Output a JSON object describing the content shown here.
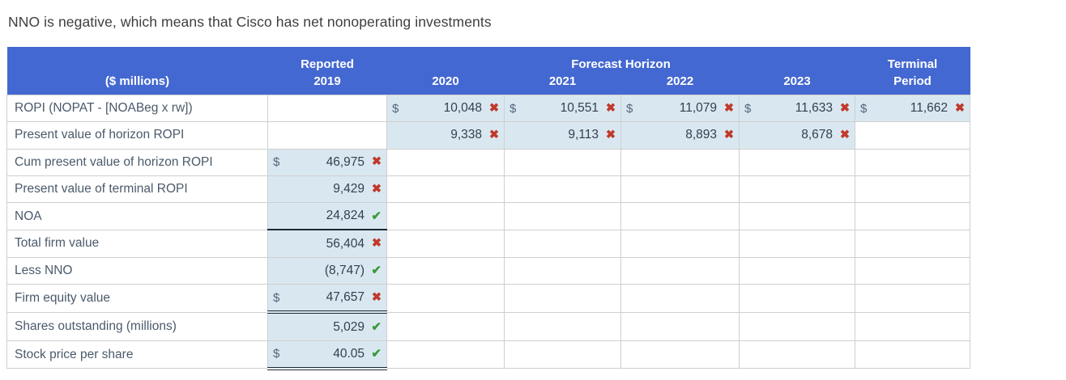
{
  "title": "NNO is negative, which means that Cisco has net nonoperating investments",
  "colors": {
    "header_bg": "#4468d1",
    "filled_bg": "#d9e8f0",
    "wrong": "#c0392b",
    "correct": "#3c993c",
    "label_text": "#4b5a6b",
    "value_text": "#333f4f",
    "title_text": "#3e3e3e",
    "border": "#cfcfcf",
    "dark_line": "#1f2a36"
  },
  "table": {
    "header": {
      "reported": "Reported",
      "forecast_horizon": "Forecast Horizon",
      "terminal": "Terminal",
      "millions": "($ millions)",
      "y2019": "2019",
      "y2020": "2020",
      "y2021": "2021",
      "y2022": "2022",
      "y2023": "2023",
      "period": "Period"
    },
    "marks": {
      "wrong": "✖",
      "correct": "✔"
    },
    "columns": [
      "y2019",
      "y2020",
      "y2021",
      "y2022",
      "y2023",
      "terminal"
    ],
    "rows": [
      {
        "label": "ROPI (NOPAT - [NOABeg x rw])",
        "cells": {
          "y2020": {
            "filled": true,
            "dollar": "$",
            "value": "10,048",
            "mark": "wrong"
          },
          "y2021": {
            "filled": true,
            "dollar": "$",
            "value": "10,551",
            "mark": "wrong"
          },
          "y2022": {
            "filled": true,
            "dollar": "$",
            "value": "11,079",
            "mark": "wrong"
          },
          "y2023": {
            "filled": true,
            "dollar": "$",
            "value": "11,633",
            "mark": "wrong"
          },
          "terminal": {
            "filled": true,
            "dollar": "$",
            "value": "11,662",
            "mark": "wrong"
          }
        }
      },
      {
        "label": "Present value of horizon ROPI",
        "cells": {
          "y2020": {
            "filled": true,
            "value": "9,338",
            "mark": "wrong"
          },
          "y2021": {
            "filled": true,
            "value": "9,113",
            "mark": "wrong"
          },
          "y2022": {
            "filled": true,
            "value": "8,893",
            "mark": "wrong"
          },
          "y2023": {
            "filled": true,
            "value": "8,678",
            "mark": "wrong"
          }
        }
      },
      {
        "label": "Cum present value of horizon ROPI",
        "cells": {
          "y2019": {
            "filled": true,
            "dollar": "$",
            "value": "46,975",
            "mark": "wrong"
          }
        }
      },
      {
        "label": "Present value of terminal ROPI",
        "cells": {
          "y2019": {
            "filled": true,
            "value": "9,429",
            "mark": "wrong"
          }
        }
      },
      {
        "label": "NOA",
        "cells": {
          "y2019": {
            "filled": true,
            "value": "24,824",
            "mark": "correct",
            "underline": "single"
          }
        }
      },
      {
        "label": "Total firm value",
        "cells": {
          "y2019": {
            "filled": true,
            "value": "56,404",
            "mark": "wrong"
          }
        }
      },
      {
        "label": "Less NNO",
        "cells": {
          "y2019": {
            "filled": true,
            "value": "(8,747)",
            "mark": "correct"
          }
        }
      },
      {
        "label": "Firm equity value",
        "cells": {
          "y2019": {
            "filled": true,
            "dollar": "$",
            "value": "47,657",
            "mark": "wrong",
            "underline": "double"
          }
        }
      },
      {
        "label": "Shares outstanding (millions)",
        "cells": {
          "y2019": {
            "filled": true,
            "value": "5,029",
            "mark": "correct"
          }
        }
      },
      {
        "label": "Stock price per share",
        "cells": {
          "y2019": {
            "filled": true,
            "dollar": "$",
            "value": "40.05",
            "mark": "correct",
            "underline": "double"
          }
        }
      }
    ]
  }
}
